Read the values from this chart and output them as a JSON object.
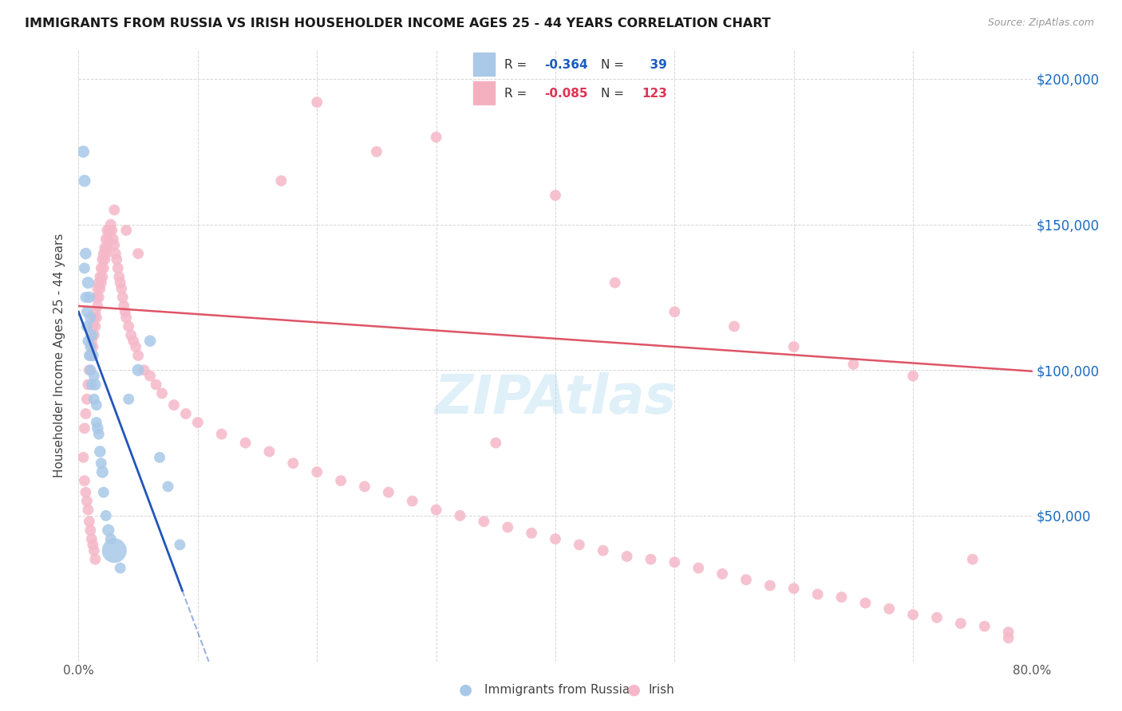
{
  "title": "IMMIGRANTS FROM RUSSIA VS IRISH HOUSEHOLDER INCOME AGES 25 - 44 YEARS CORRELATION CHART",
  "source": "Source: ZipAtlas.com",
  "ylabel": "Householder Income Ages 25 - 44 years",
  "legend_russia": "Immigrants from Russia",
  "legend_irish": "Irish",
  "russia_R": -0.364,
  "russia_N": 39,
  "irish_R": -0.085,
  "irish_N": 123,
  "xlim": [
    0.0,
    0.8
  ],
  "ylim": [
    0,
    210000
  ],
  "yticks": [
    0,
    50000,
    100000,
    150000,
    200000
  ],
  "xtick_labels": [
    "0.0%",
    "",
    "",
    "",
    "",
    "",
    "",
    "",
    "80.0%"
  ],
  "ytick_right_labels": [
    "",
    "$50,000",
    "$100,000",
    "$150,000",
    "$200,000"
  ],
  "russia_color": "#a8c8e8",
  "irish_color": "#f5b8c8",
  "russia_line_color": "#2255bb",
  "irish_line_color": "#dd5566",
  "watermark_text": "ZIPAtlas",
  "russia_x": [
    0.004,
    0.005,
    0.005,
    0.006,
    0.006,
    0.007,
    0.007,
    0.008,
    0.008,
    0.009,
    0.009,
    0.01,
    0.01,
    0.01,
    0.011,
    0.011,
    0.012,
    0.013,
    0.013,
    0.014,
    0.015,
    0.015,
    0.016,
    0.017,
    0.018,
    0.019,
    0.02,
    0.021,
    0.023,
    0.025,
    0.027,
    0.03,
    0.035,
    0.042,
    0.05,
    0.06,
    0.068,
    0.075,
    0.085
  ],
  "russia_y": [
    175000,
    165000,
    135000,
    125000,
    140000,
    120000,
    115000,
    130000,
    110000,
    125000,
    105000,
    118000,
    108000,
    100000,
    112000,
    95000,
    105000,
    98000,
    90000,
    95000,
    88000,
    82000,
    80000,
    78000,
    72000,
    68000,
    65000,
    58000,
    50000,
    45000,
    42000,
    38000,
    32000,
    90000,
    100000,
    110000,
    70000,
    60000,
    40000
  ],
  "russia_sizes": [
    120,
    120,
    100,
    100,
    110,
    100,
    100,
    120,
    100,
    110,
    100,
    110,
    100,
    100,
    110,
    100,
    110,
    100,
    100,
    110,
    100,
    100,
    110,
    100,
    110,
    100,
    120,
    100,
    100,
    120,
    100,
    500,
    100,
    100,
    120,
    110,
    100,
    100,
    100
  ],
  "irish_x": [
    0.004,
    0.005,
    0.006,
    0.007,
    0.008,
    0.009,
    0.01,
    0.011,
    0.012,
    0.012,
    0.013,
    0.013,
    0.014,
    0.014,
    0.015,
    0.015,
    0.016,
    0.016,
    0.017,
    0.017,
    0.018,
    0.018,
    0.019,
    0.019,
    0.02,
    0.02,
    0.021,
    0.021,
    0.022,
    0.022,
    0.023,
    0.023,
    0.024,
    0.024,
    0.025,
    0.026,
    0.027,
    0.028,
    0.029,
    0.03,
    0.031,
    0.032,
    0.033,
    0.034,
    0.035,
    0.036,
    0.037,
    0.038,
    0.039,
    0.04,
    0.042,
    0.044,
    0.046,
    0.048,
    0.05,
    0.055,
    0.06,
    0.065,
    0.07,
    0.08,
    0.09,
    0.1,
    0.12,
    0.14,
    0.16,
    0.18,
    0.2,
    0.22,
    0.24,
    0.26,
    0.28,
    0.3,
    0.32,
    0.34,
    0.36,
    0.38,
    0.4,
    0.42,
    0.44,
    0.46,
    0.48,
    0.5,
    0.52,
    0.54,
    0.56,
    0.58,
    0.6,
    0.62,
    0.64,
    0.66,
    0.68,
    0.7,
    0.72,
    0.74,
    0.76,
    0.78,
    0.35,
    0.4,
    0.3,
    0.25,
    0.2,
    0.17,
    0.45,
    0.5,
    0.55,
    0.6,
    0.65,
    0.7,
    0.75,
    0.78,
    0.005,
    0.006,
    0.007,
    0.008,
    0.009,
    0.01,
    0.011,
    0.012,
    0.013,
    0.014,
    0.03,
    0.04,
    0.05
  ],
  "irish_y": [
    70000,
    80000,
    85000,
    90000,
    95000,
    100000,
    105000,
    110000,
    108000,
    115000,
    112000,
    118000,
    115000,
    120000,
    118000,
    125000,
    122000,
    128000,
    125000,
    130000,
    128000,
    132000,
    130000,
    135000,
    132000,
    138000,
    135000,
    140000,
    138000,
    142000,
    140000,
    145000,
    142000,
    148000,
    145000,
    148000,
    150000,
    148000,
    145000,
    143000,
    140000,
    138000,
    135000,
    132000,
    130000,
    128000,
    125000,
    122000,
    120000,
    118000,
    115000,
    112000,
    110000,
    108000,
    105000,
    100000,
    98000,
    95000,
    92000,
    88000,
    85000,
    82000,
    78000,
    75000,
    72000,
    68000,
    65000,
    62000,
    60000,
    58000,
    55000,
    52000,
    50000,
    48000,
    46000,
    44000,
    42000,
    40000,
    38000,
    36000,
    35000,
    34000,
    32000,
    30000,
    28000,
    26000,
    25000,
    23000,
    22000,
    20000,
    18000,
    16000,
    15000,
    13000,
    12000,
    10000,
    75000,
    160000,
    180000,
    175000,
    192000,
    165000,
    130000,
    120000,
    115000,
    108000,
    102000,
    98000,
    35000,
    8000,
    62000,
    58000,
    55000,
    52000,
    48000,
    45000,
    42000,
    40000,
    38000,
    35000,
    155000,
    148000,
    140000
  ],
  "irish_sizes": [
    100,
    100,
    100,
    100,
    100,
    100,
    100,
    100,
    100,
    100,
    100,
    100,
    100,
    100,
    100,
    100,
    100,
    100,
    100,
    100,
    100,
    100,
    100,
    100,
    100,
    100,
    100,
    100,
    100,
    100,
    100,
    100,
    100,
    100,
    100,
    100,
    100,
    100,
    100,
    100,
    100,
    100,
    100,
    100,
    100,
    100,
    100,
    100,
    100,
    100,
    100,
    100,
    100,
    100,
    100,
    100,
    100,
    100,
    100,
    100,
    100,
    100,
    100,
    100,
    100,
    100,
    100,
    100,
    100,
    100,
    100,
    100,
    100,
    100,
    100,
    100,
    100,
    100,
    100,
    100,
    100,
    100,
    100,
    100,
    100,
    100,
    100,
    100,
    100,
    100,
    100,
    100,
    100,
    100,
    100,
    100,
    100,
    100,
    100,
    100,
    100,
    100,
    100,
    100,
    100,
    100,
    100,
    100,
    100,
    100,
    100,
    100,
    100,
    100,
    100,
    100,
    100,
    100,
    100,
    100,
    100,
    100,
    100
  ]
}
